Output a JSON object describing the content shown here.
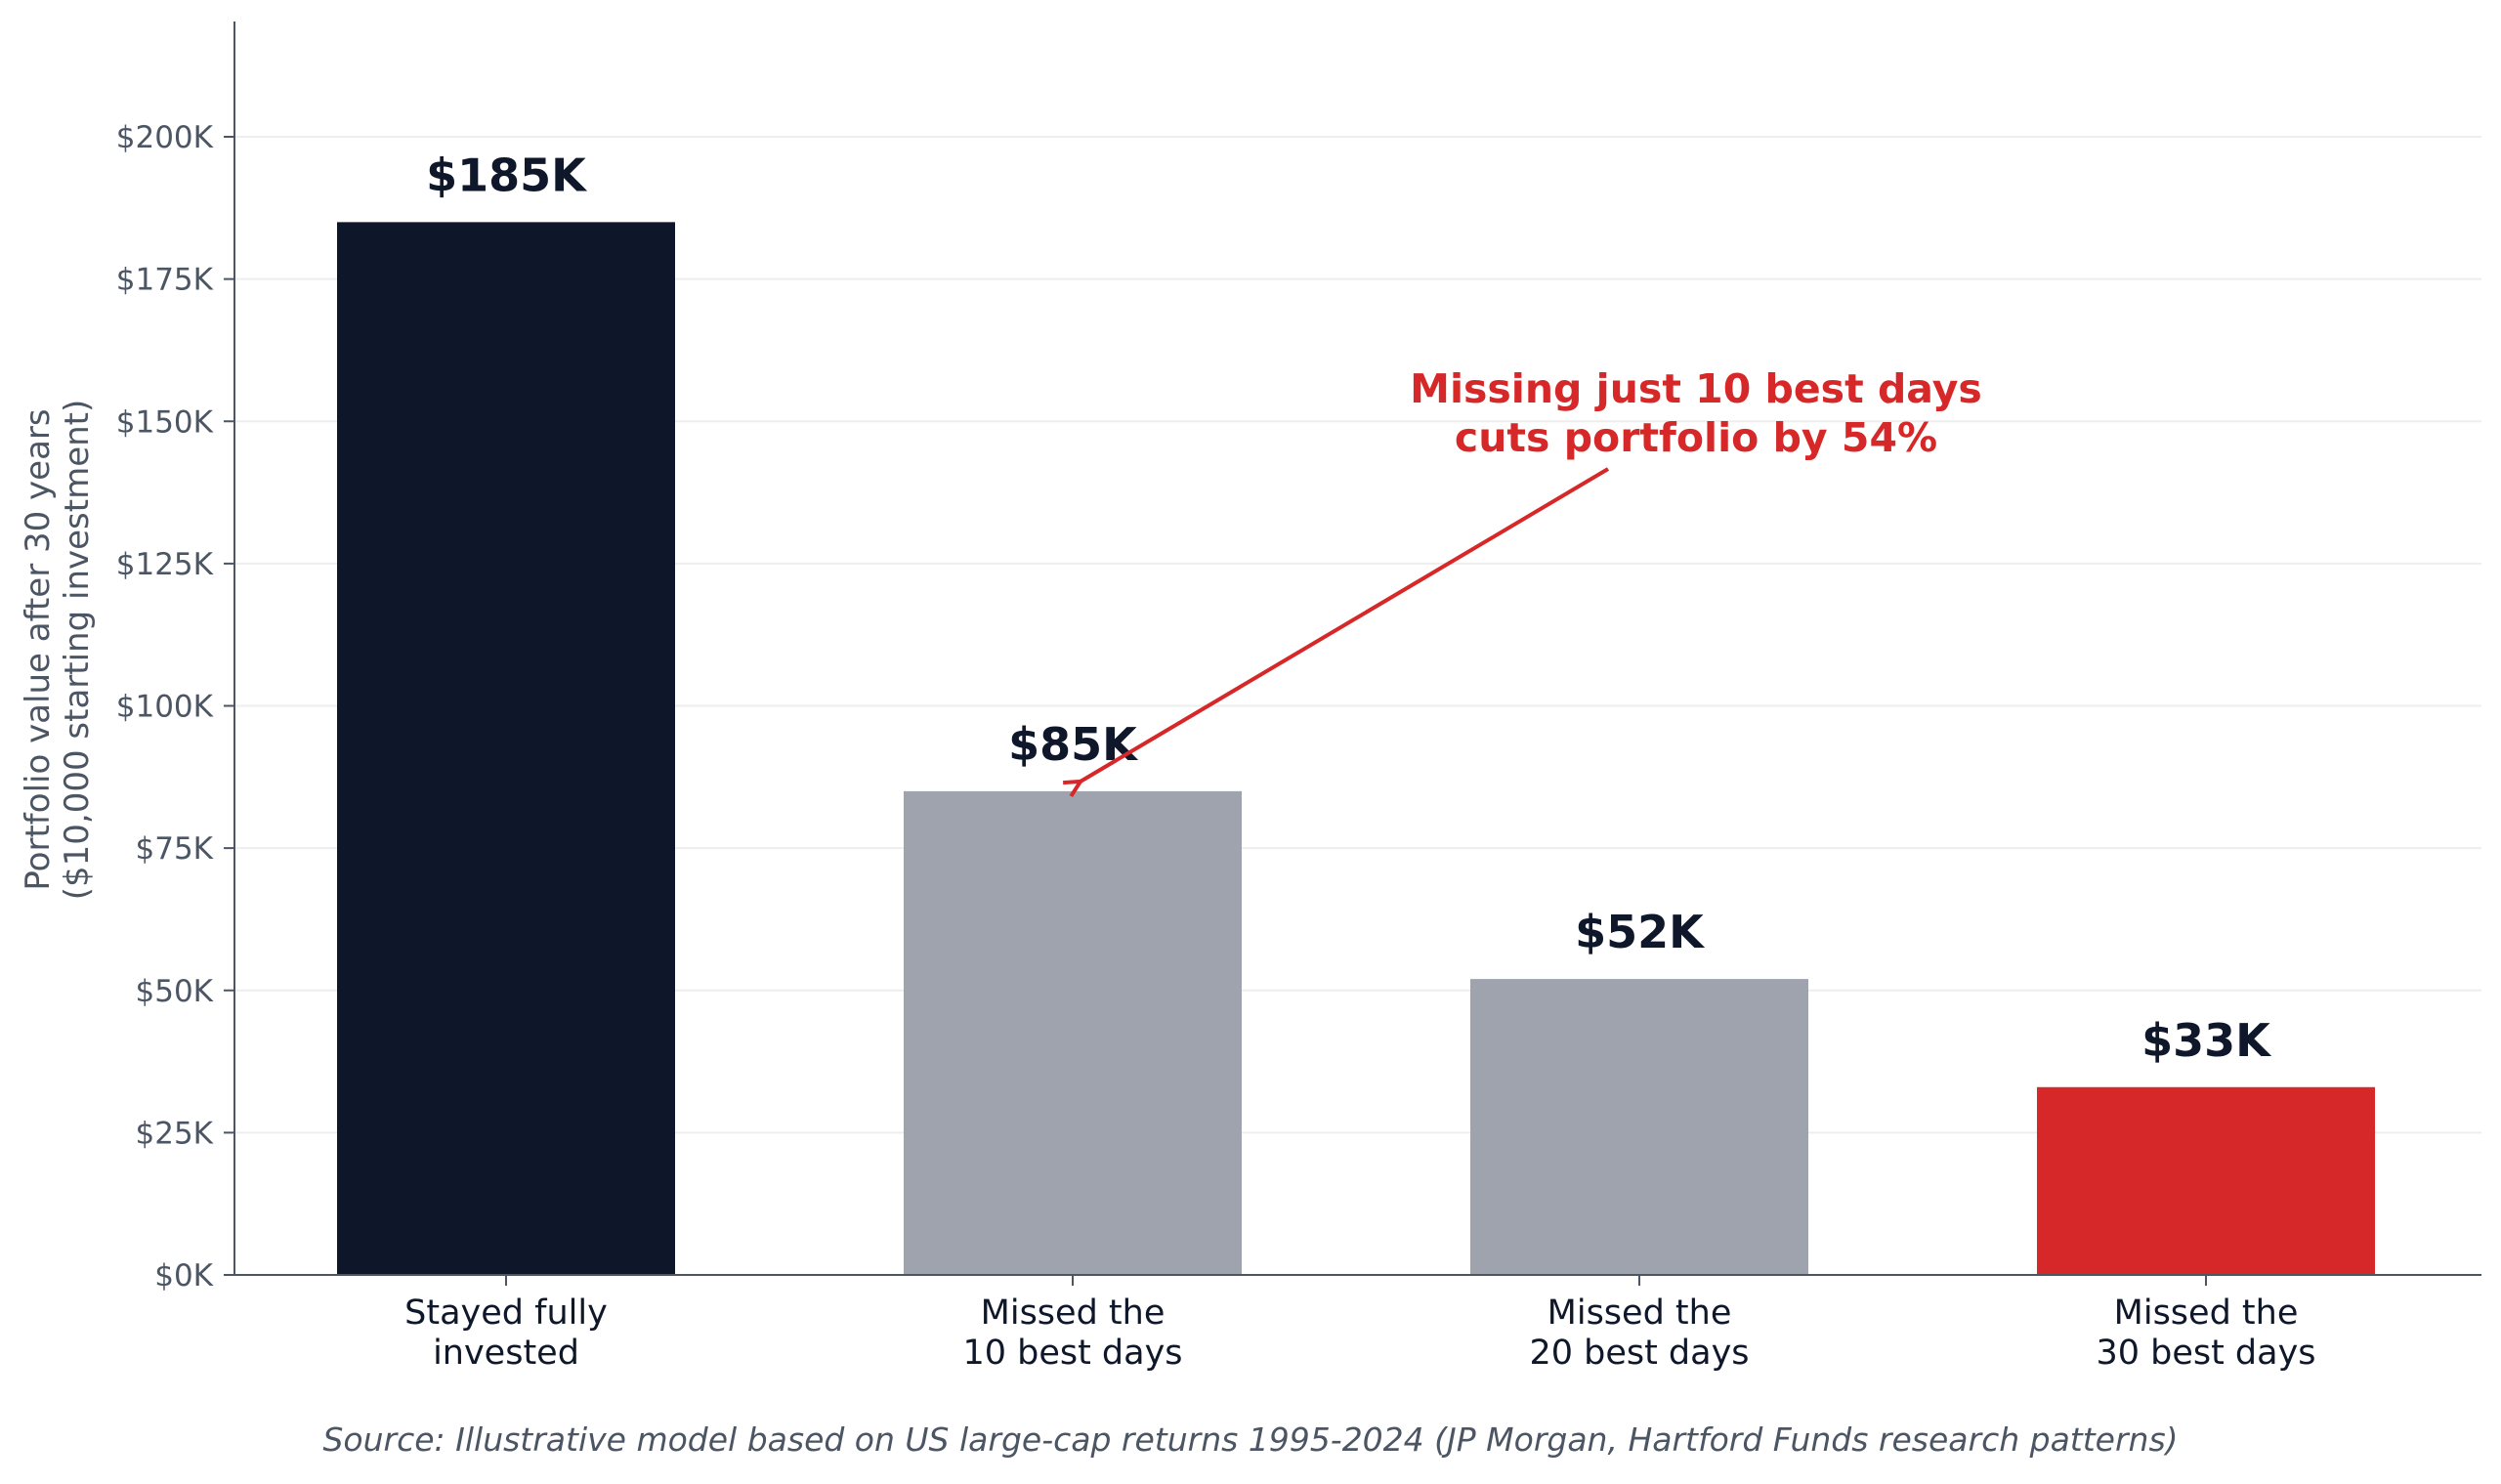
{
  "chart_data": {
    "type": "bar",
    "categories": [
      [
        "Stayed fully",
        "invested"
      ],
      [
        "Missed the",
        "10 best days"
      ],
      [
        "Missed the",
        "20 best days"
      ],
      [
        "Missed the",
        "30 best days"
      ]
    ],
    "values": [
      185000,
      85000,
      52000,
      33000
    ],
    "value_labels": [
      "$185K",
      "$85K",
      "$52K",
      "$33K"
    ],
    "bar_colors": [
      "#0d1729",
      "#9ea3ae",
      "#9ea3ae",
      "#d62828"
    ],
    "ylabel": [
      "Portfolio value after 30 years",
      "($10,000 starting investment)"
    ],
    "ylim": [
      0,
      220000
    ],
    "yticks": [
      0,
      25000,
      50000,
      75000,
      100000,
      125000,
      150000,
      175000,
      200000
    ],
    "ytick_labels": [
      "$0K",
      "$25K",
      "$50K",
      "$75K",
      "$100K",
      "$125K",
      "$150K",
      "$175K",
      "$200K"
    ],
    "grid": true,
    "annotation": {
      "text": [
        "Missing just 10 best days",
        "cuts portfolio by 54%"
      ],
      "color": "#d62828",
      "points_to_category": 1,
      "points_to_value": 85000
    },
    "source": "Source: Illustrative model based on US large-cap returns 1995-2024 (JP Morgan, Hartford Funds research patterns)"
  },
  "colors": {
    "axis": "#4b5563",
    "grid": "#eeeeee",
    "text_dark": "#0f172a",
    "text_muted": "#4b5563",
    "accent_red": "#d62828"
  }
}
